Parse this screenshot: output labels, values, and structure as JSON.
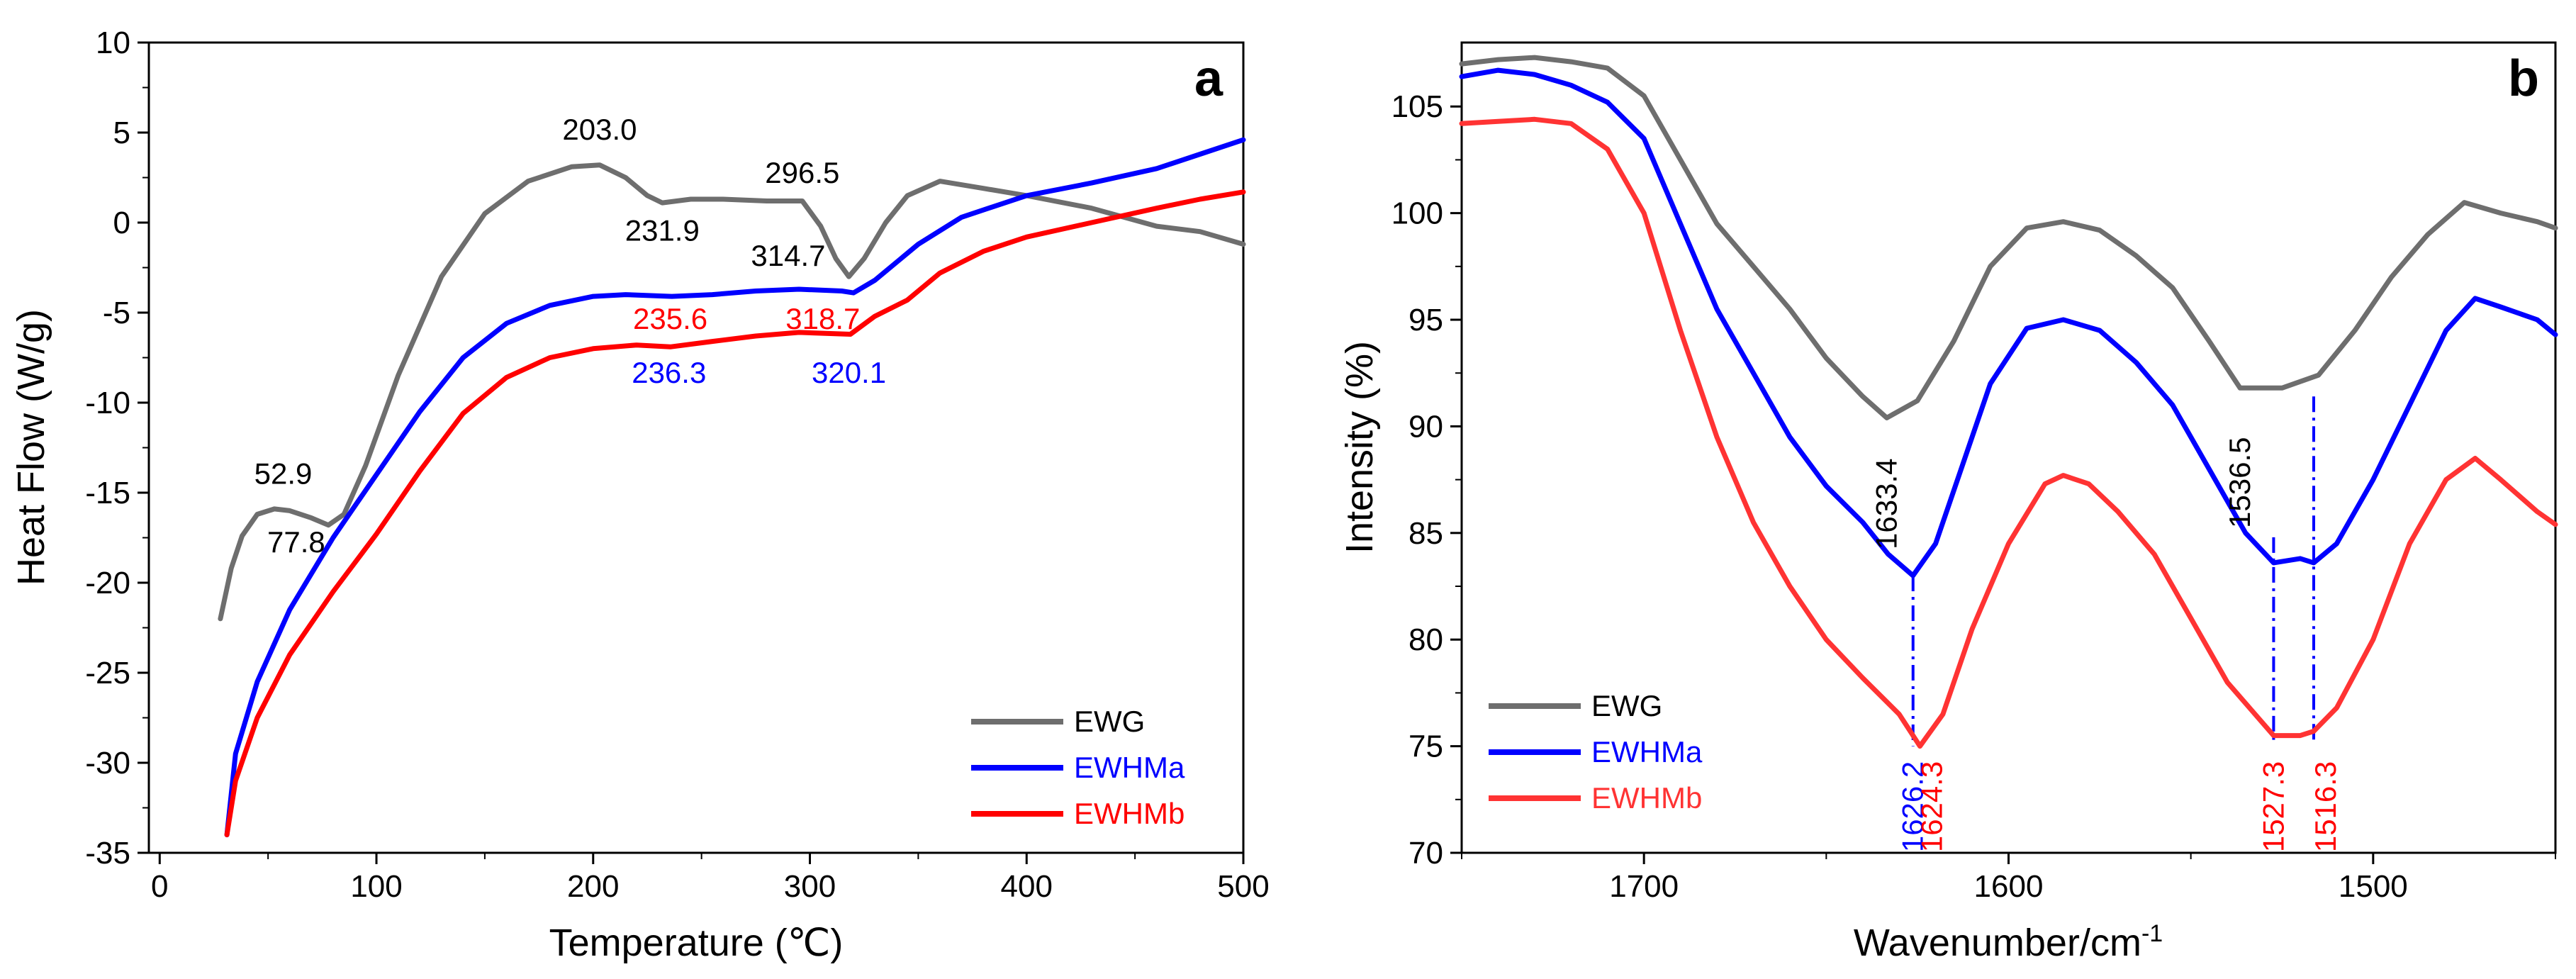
{
  "chart_data": [
    {
      "id": "a",
      "type": "line",
      "panel_label": "a",
      "xlabel": "Temperature (℃)",
      "ylabel": "Heat Flow (W/g)",
      "xlim": [
        -5,
        500
      ],
      "ylim": [
        -35,
        10
      ],
      "xticks": [
        0,
        100,
        200,
        300,
        400,
        500
      ],
      "yticks": [
        10,
        5,
        0,
        -5,
        -10,
        -15,
        -20,
        -25,
        -30,
        -35
      ],
      "legend_position": "bottom-right",
      "series": [
        {
          "name": "EWG",
          "color": "#6e6e6e",
          "x": [
            28,
            33,
            38,
            45,
            52.9,
            60,
            70,
            77.8,
            85,
            95,
            110,
            130,
            150,
            170,
            190,
            203,
            215,
            225,
            231.9,
            245,
            260,
            280,
            296.5,
            305,
            312,
            318,
            325,
            335,
            345,
            360,
            380,
            400,
            430,
            460,
            480,
            500
          ],
          "y": [
            -22,
            -19.2,
            -17.4,
            -16.2,
            -15.9,
            -16.0,
            -16.4,
            -16.8,
            -16.2,
            -13.5,
            -8.5,
            -3.0,
            0.5,
            2.3,
            3.1,
            3.2,
            2.5,
            1.5,
            1.1,
            1.3,
            1.3,
            1.2,
            1.2,
            -0.2,
            -2.0,
            -3.0,
            -2.0,
            0.0,
            1.5,
            2.3,
            1.9,
            1.5,
            0.8,
            -0.2,
            -0.5,
            -1.2
          ]
        },
        {
          "name": "EWHMa",
          "color": "#0000ff",
          "x": [
            31,
            35,
            45,
            60,
            80,
            100,
            120,
            140,
            160,
            180,
            200,
            215,
            236.3,
            255,
            275,
            295,
            314.7,
            320.1,
            330,
            350,
            370,
            400,
            430,
            460,
            480,
            500
          ],
          "y": [
            -34,
            -29.5,
            -25.5,
            -21.5,
            -17.5,
            -14.0,
            -10.5,
            -7.5,
            -5.6,
            -4.6,
            -4.1,
            -4.0,
            -4.1,
            -4.0,
            -3.8,
            -3.7,
            -3.8,
            -3.9,
            -3.2,
            -1.2,
            0.3,
            1.5,
            2.2,
            3.0,
            3.8,
            4.6
          ]
        },
        {
          "name": "EWHMb",
          "color": "#ff0000",
          "x": [
            31,
            35,
            45,
            60,
            80,
            100,
            120,
            140,
            160,
            180,
            200,
            220,
            235.6,
            255,
            275,
            295,
            318.7,
            330,
            345,
            360,
            380,
            400,
            430,
            460,
            480,
            500
          ],
          "y": [
            -34,
            -31,
            -27.5,
            -24,
            -20.5,
            -17.3,
            -13.8,
            -10.6,
            -8.6,
            -7.5,
            -7.0,
            -6.8,
            -6.9,
            -6.6,
            -6.3,
            -6.1,
            -6.2,
            -5.2,
            -4.3,
            -2.8,
            -1.6,
            -0.8,
            0.0,
            0.8,
            1.3,
            1.7
          ]
        }
      ],
      "annotations": [
        {
          "text": "203.0",
          "x": 203,
          "y": 4.6,
          "color": "#000000"
        },
        {
          "text": "296.5",
          "x": 296.5,
          "y": 2.2,
          "color": "#000000"
        },
        {
          "text": "231.9",
          "x": 231.9,
          "y": -1.0,
          "color": "#000000"
        },
        {
          "text": "314.7",
          "x": 290,
          "y": -2.4,
          "color": "#000000"
        },
        {
          "text": "235.6",
          "x": 235.6,
          "y": -5.9,
          "color": "#ff0000"
        },
        {
          "text": "318.7",
          "x": 306,
          "y": -5.9,
          "color": "#ff0000"
        },
        {
          "text": "236.3",
          "x": 235,
          "y": -8.9,
          "color": "#0000ff"
        },
        {
          "text": "320.1",
          "x": 318,
          "y": -8.9,
          "color": "#0000ff"
        },
        {
          "text": "52.9",
          "x": 57,
          "y": -14.5,
          "color": "#000000"
        },
        {
          "text": "77.8",
          "x": 63,
          "y": -18.3,
          "color": "#000000"
        }
      ]
    },
    {
      "id": "b",
      "type": "line",
      "panel_label": "b",
      "xlabel": "Wavenumber/cm",
      "xlabel_superscript": "-1",
      "ylabel": "Intensity (%)",
      "xlim": [
        1750,
        1450
      ],
      "ylim": [
        70,
        108
      ],
      "xticks": [
        1700,
        1600,
        1500
      ],
      "yticks": [
        105,
        100,
        95,
        90,
        85,
        80,
        75,
        70
      ],
      "legend_position": "bottom-left",
      "series": [
        {
          "name": "EWG",
          "color": "#6e6e6e",
          "x": [
            1750,
            1740,
            1730,
            1720,
            1710,
            1700,
            1690,
            1680,
            1670,
            1660,
            1650,
            1640,
            1633.4,
            1625,
            1615,
            1605,
            1595,
            1585,
            1575,
            1565,
            1555,
            1545,
            1536.5,
            1525,
            1515,
            1505,
            1495,
            1485,
            1475,
            1465,
            1455,
            1450
          ],
          "y": [
            107.0,
            107.2,
            107.3,
            107.1,
            106.8,
            105.5,
            102.5,
            99.5,
            97.5,
            95.5,
            93.2,
            91.4,
            90.4,
            91.2,
            94.0,
            97.5,
            99.3,
            99.6,
            99.2,
            98.0,
            96.5,
            94.0,
            91.8,
            91.8,
            92.4,
            94.5,
            97.0,
            99.0,
            100.5,
            100.0,
            99.6,
            99.3
          ]
        },
        {
          "name": "EWHMa",
          "color": "#0000ff",
          "x": [
            1750,
            1740,
            1730,
            1720,
            1710,
            1700,
            1690,
            1680,
            1670,
            1660,
            1650,
            1640,
            1633,
            1626.2,
            1620,
            1612,
            1605,
            1595,
            1585,
            1575,
            1565,
            1555,
            1545,
            1535,
            1527.3,
            1520,
            1516.3,
            1510,
            1500,
            1490,
            1480,
            1472,
            1465,
            1455,
            1450
          ],
          "y": [
            106.4,
            106.7,
            106.5,
            106.0,
            105.2,
            103.5,
            99.5,
            95.5,
            92.5,
            89.5,
            87.2,
            85.5,
            84.0,
            83.0,
            84.5,
            88.5,
            92.0,
            94.6,
            95.0,
            94.5,
            93.0,
            91.0,
            88.0,
            85.0,
            83.6,
            83.8,
            83.6,
            84.5,
            87.5,
            91.0,
            94.5,
            96.0,
            95.6,
            95.0,
            94.3
          ]
        },
        {
          "name": "EWHMb",
          "color": "#ff3333",
          "x": [
            1750,
            1740,
            1730,
            1720,
            1710,
            1700,
            1690,
            1680,
            1670,
            1660,
            1650,
            1640,
            1630,
            1624.3,
            1618,
            1610,
            1600,
            1590,
            1585,
            1578,
            1570,
            1560,
            1550,
            1540,
            1527.3,
            1520,
            1516.3,
            1510,
            1500,
            1490,
            1480,
            1472,
            1465,
            1455,
            1450
          ],
          "y": [
            104.2,
            104.3,
            104.4,
            104.2,
            103.0,
            100.0,
            94.5,
            89.5,
            85.5,
            82.5,
            80.0,
            78.2,
            76.5,
            75.0,
            76.5,
            80.5,
            84.5,
            87.3,
            87.7,
            87.3,
            86.0,
            84.0,
            81.0,
            78.0,
            75.5,
            75.5,
            75.7,
            76.8,
            80.0,
            84.5,
            87.5,
            88.5,
            87.5,
            86.0,
            85.4
          ]
        }
      ],
      "annotations": [
        {
          "text": "1633.4",
          "x": 1633.4,
          "y": 88.5,
          "color": "#000000",
          "rotate": -90
        },
        {
          "text": "1536.5",
          "x": 1536.5,
          "y": 89.5,
          "color": "#000000",
          "rotate": -90
        },
        {
          "text": "1626.2",
          "x": 1626.2,
          "y": 74.3,
          "color": "#0000ff",
          "rotate": -90
        },
        {
          "text": "1624.3",
          "x": 1621,
          "y": 74.3,
          "color": "#ff0000",
          "rotate": -90
        },
        {
          "text": "1527.3",
          "x": 1527.3,
          "y": 74.3,
          "color": "#ff0000",
          "rotate": -90
        },
        {
          "text": "1516.3",
          "x": 1513,
          "y": 74.3,
          "color": "#ff0000",
          "rotate": -90
        }
      ],
      "marker_lines": [
        {
          "x": 1626.2,
          "y1": 83.0,
          "y2": 75.0,
          "color": "#0000ff"
        },
        {
          "x": 1527.3,
          "y1": 84.8,
          "y2": 75.3,
          "color": "#0000ff"
        },
        {
          "x": 1516.3,
          "y1": 91.4,
          "y2": 75.3,
          "color": "#0000ff"
        }
      ]
    }
  ]
}
